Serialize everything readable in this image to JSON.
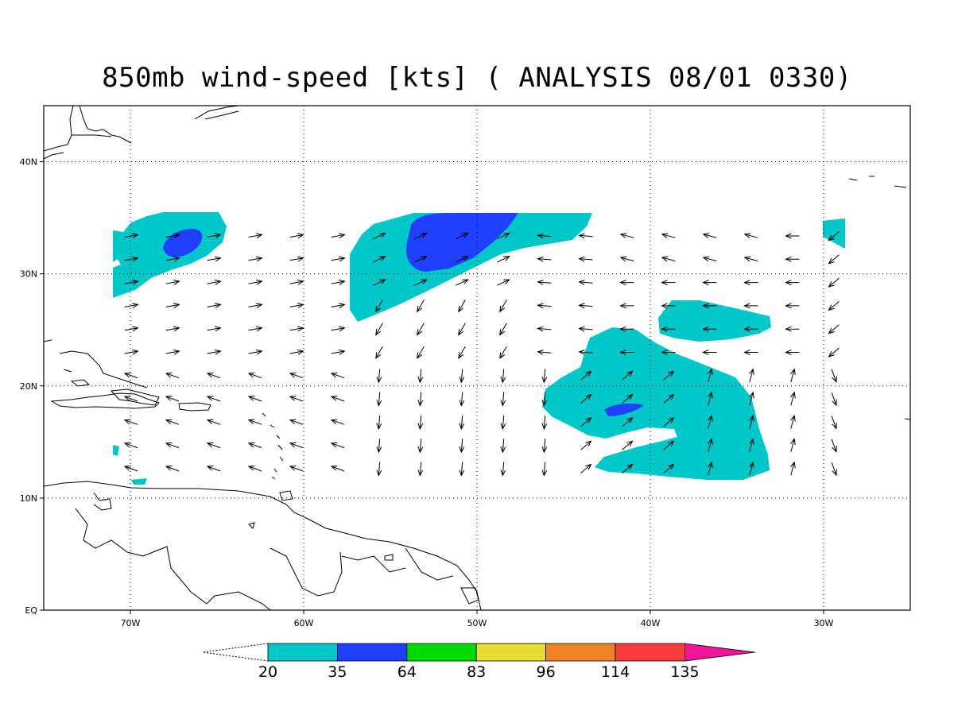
{
  "title": "850mb wind-speed [kts] ( ANALYSIS 08/01 0330)",
  "map": {
    "lon_range": [
      -75,
      -25
    ],
    "lat_range": [
      0,
      45
    ],
    "lon_ticks": [
      {
        "value": -70,
        "label": "70W"
      },
      {
        "value": -60,
        "label": "60W"
      },
      {
        "value": -50,
        "label": "50W"
      },
      {
        "value": -40,
        "label": "40W"
      },
      {
        "value": -30,
        "label": "30W"
      }
    ],
    "lat_ticks": [
      {
        "value": 0,
        "label": "EQ"
      },
      {
        "value": 10,
        "label": "10N"
      },
      {
        "value": 20,
        "label": "20N"
      },
      {
        "value": 30,
        "label": "30N"
      },
      {
        "value": 40,
        "label": "40N"
      }
    ],
    "grid": true
  },
  "colorbar": {
    "levels": [
      "20",
      "35",
      "64",
      "83",
      "96",
      "114",
      "135"
    ],
    "colors": [
      "#00c8c8",
      "#2040ff",
      "#00dc00",
      "#e6dc32",
      "#f08228",
      "#fa3c3c",
      "#f0149b"
    ]
  }
}
